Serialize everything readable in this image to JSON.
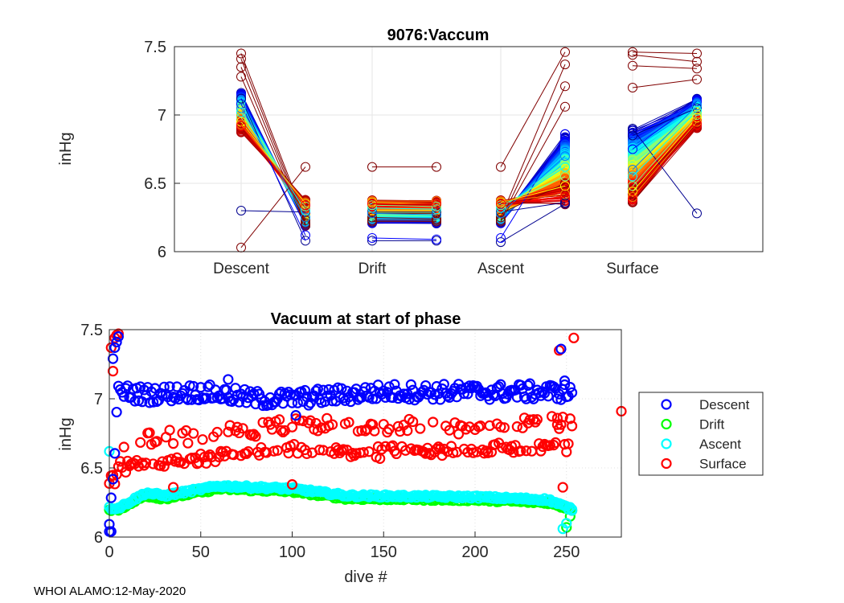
{
  "footer": "WHOI ALAMO:12-May-2020",
  "chart_data": [
    {
      "type": "line",
      "title": "9076:Vaccum",
      "xlabel": "",
      "ylabel": "inHg",
      "categories": [
        "Descent",
        "Drift",
        "Ascent",
        "Surface"
      ],
      "ylim": [
        6,
        7.5
      ],
      "yticks": [
        6,
        6.5,
        7,
        7.5
      ],
      "grid": true,
      "colormap": "jet",
      "note": "Each dive draws a start (left) and end (right) marker per phase, connected by a line; color goes from dark blue (early dives) to dark red (late dives).",
      "series_sample": [
        {
          "dive": 1,
          "color": "#00008f",
          "descent": [
            6.3,
            6.29
          ],
          "drift": [
            6.29,
            6.29
          ],
          "ascent": [
            6.29,
            6.36
          ],
          "surface": [
            6.85,
            7.05
          ]
        },
        {
          "dive": 2,
          "color": "#800000",
          "descent": [
            7.45,
            6.23
          ],
          "drift": [
            6.62,
            6.62
          ],
          "ascent": [
            6.62,
            7.46
          ],
          "surface": [
            7.46,
            7.45
          ]
        },
        {
          "dive": 3,
          "color": "#800000",
          "descent": [
            7.41,
            6.21
          ],
          "drift": [
            6.25,
            6.24
          ],
          "ascent": [
            6.25,
            7.37
          ],
          "surface": [
            7.44,
            7.39
          ]
        },
        {
          "dive": 4,
          "color": "#800000",
          "descent": [
            7.35,
            6.2
          ],
          "drift": [
            6.23,
            6.23
          ],
          "ascent": [
            6.23,
            7.21
          ],
          "surface": [
            7.36,
            7.34
          ]
        },
        {
          "dive": 5,
          "color": "#800000",
          "descent": [
            7.28,
            6.19
          ],
          "drift": [
            6.22,
            6.22
          ],
          "ascent": [
            6.22,
            7.06
          ],
          "surface": [
            7.2,
            7.26
          ]
        },
        {
          "dive": 6,
          "color": "#800000",
          "descent": [
            6.03,
            6.62
          ],
          "drift": [
            6.28,
            6.28
          ],
          "ascent": [
            6.28,
            6.5
          ],
          "surface": [
            6.36,
            6.95
          ]
        },
        {
          "dive": 7,
          "color": "#00008f",
          "descent": [
            7.12,
            6.08
          ],
          "drift": [
            6.08,
            6.08
          ],
          "ascent": [
            6.07,
            6.35
          ],
          "surface": [
            6.9,
            6.28
          ]
        },
        {
          "dive": 8,
          "color": "#0000ff",
          "descent": [
            7.08,
            6.12
          ],
          "drift": [
            6.1,
            6.09
          ],
          "ascent": [
            6.1,
            6.86
          ],
          "surface": [
            6.75,
            7.1
          ]
        },
        {
          "dive": 9,
          "color": "#0080ff",
          "descent": [
            7.05,
            6.25
          ],
          "drift": [
            6.28,
            6.27
          ],
          "ascent": [
            6.28,
            6.7
          ],
          "surface": [
            6.6,
            7.07
          ]
        },
        {
          "dive": 10,
          "color": "#00ffff",
          "descent": [
            7.02,
            6.3
          ],
          "drift": [
            6.32,
            6.31
          ],
          "ascent": [
            6.32,
            6.62
          ],
          "surface": [
            6.55,
            7.03
          ]
        },
        {
          "dive": 11,
          "color": "#80ff80",
          "descent": [
            6.98,
            6.33
          ],
          "drift": [
            6.34,
            6.33
          ],
          "ascent": [
            6.34,
            6.55
          ],
          "surface": [
            6.48,
            7.0
          ]
        },
        {
          "dive": 12,
          "color": "#ffff00",
          "descent": [
            6.95,
            6.35
          ],
          "drift": [
            6.36,
            6.35
          ],
          "ascent": [
            6.36,
            6.48
          ],
          "surface": [
            6.44,
            6.98
          ]
        },
        {
          "dive": 13,
          "color": "#ff8000",
          "descent": [
            6.93,
            6.36
          ],
          "drift": [
            6.37,
            6.37
          ],
          "ascent": [
            6.37,
            6.42
          ],
          "surface": [
            6.4,
            6.95
          ]
        },
        {
          "dive": 14,
          "color": "#ff0000",
          "descent": [
            6.92,
            6.34
          ],
          "drift": [
            6.35,
            6.35
          ],
          "ascent": [
            6.35,
            6.4
          ],
          "surface": [
            6.38,
            6.93
          ]
        }
      ]
    },
    {
      "type": "scatter",
      "title": "Vacuum at start of phase",
      "xlabel": "dive #",
      "ylabel": "inHg",
      "xlim": [
        0,
        280
      ],
      "ylim": [
        6,
        7.5
      ],
      "xticks": [
        0,
        50,
        100,
        150,
        200,
        250
      ],
      "yticks": [
        6,
        6.5,
        7,
        7.5
      ],
      "grid": true,
      "legend_position": "outside-right",
      "series": [
        {
          "name": "Descent",
          "color": "#0000ff",
          "trend": {
            "x": [
              0,
              5,
              20,
              50,
              80,
              100,
              150,
              200,
              250,
              253
            ],
            "y": [
              6.05,
              7.05,
              7.03,
              7.05,
              7.0,
              7.0,
              7.05,
              7.05,
              7.05,
              7.05
            ]
          },
          "outliers": [
            [
              0,
              6.04
            ],
            [
              1,
              6.04
            ],
            [
              2,
              7.29
            ],
            [
              3,
              7.37
            ],
            [
              4,
              7.41
            ],
            [
              5,
              7.45
            ],
            [
              65,
              7.14
            ],
            [
              102,
              6.88
            ],
            [
              247,
              7.36
            ],
            [
              249,
              7.13
            ]
          ]
        },
        {
          "name": "Drift",
          "color": "#00ff00",
          "trend": {
            "x": [
              0,
              5,
              20,
              30,
              60,
              100,
              130,
              200,
              240,
              253
            ],
            "y": [
              6.2,
              6.2,
              6.3,
              6.28,
              6.35,
              6.33,
              6.28,
              6.27,
              6.25,
              6.2
            ]
          },
          "outliers": [
            [
              250,
              6.07
            ],
            [
              252,
              6.15
            ]
          ]
        },
        {
          "name": "Ascent",
          "color": "#00ffff",
          "trend": {
            "x": [
              0,
              5,
              20,
              30,
              60,
              100,
              130,
              200,
              240,
              253
            ],
            "y": [
              6.21,
              6.21,
              6.32,
              6.3,
              6.37,
              6.35,
              6.3,
              6.29,
              6.27,
              6.2
            ]
          },
          "outliers": [
            [
              0,
              6.62
            ],
            [
              248,
              6.06
            ],
            [
              250,
              6.1
            ],
            [
              253,
              6.2
            ]
          ]
        },
        {
          "name": "Surface",
          "color": "#ff0000",
          "trend": {
            "x": [
              0,
              5,
              20,
              50,
              100,
              150,
              200,
              250,
              253
            ],
            "y": [
              6.2,
              6.5,
              6.52,
              6.55,
              6.62,
              6.6,
              6.62,
              6.65,
              6.65
            ]
          },
          "outliers": [
            [
              1,
              7.37
            ],
            [
              2,
              7.2
            ],
            [
              3,
              7.44
            ],
            [
              4,
              7.46
            ],
            [
              5,
              7.47
            ],
            [
              246,
              7.35
            ],
            [
              254,
              7.44
            ],
            [
              280,
              6.91
            ],
            [
              100,
              6.38
            ],
            [
              35,
              6.36
            ],
            [
              245,
              6.86
            ],
            [
              248,
              6.36
            ]
          ]
        }
      ]
    }
  ]
}
